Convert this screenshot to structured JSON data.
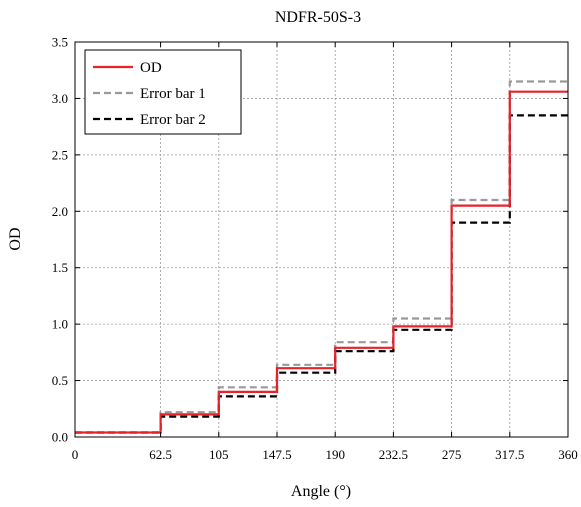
{
  "chart_data": {
    "type": "line",
    "title": "NDFR-50S-3",
    "xlabel": "Angle (°)",
    "ylabel": "OD",
    "xlim": [
      0,
      360
    ],
    "ylim": [
      0,
      3.5
    ],
    "x_ticks": [
      0,
      62.5,
      105,
      147.5,
      190,
      232.5,
      275,
      317.5,
      360
    ],
    "y_ticks": [
      0.0,
      0.5,
      1.0,
      1.5,
      2.0,
      2.5,
      3.0,
      3.5
    ],
    "x_tick_labels": [
      "0",
      "62.5",
      "105",
      "147.5",
      "190",
      "232.5",
      "275",
      "317.5",
      "360"
    ],
    "y_tick_labels": [
      "0.0",
      "0.5",
      "1.0",
      "1.5",
      "2.0",
      "2.5",
      "3.0",
      "3.5"
    ],
    "grid": true,
    "legend_position": "top-left",
    "series": [
      {
        "name": "OD",
        "color": "#e8212b",
        "style": "solid",
        "x": [
          0,
          62.5,
          62.5,
          105,
          105,
          147.5,
          147.5,
          190,
          190,
          232.5,
          232.5,
          275,
          275,
          317.5,
          317.5,
          360
        ],
        "y": [
          0.04,
          0.04,
          0.2,
          0.2,
          0.4,
          0.4,
          0.61,
          0.61,
          0.79,
          0.79,
          0.98,
          0.98,
          2.05,
          2.05,
          3.06,
          3.06
        ]
      },
      {
        "name": "Error bar 1",
        "color": "#999999",
        "style": "dashed",
        "x": [
          0,
          62.5,
          62.5,
          105,
          105,
          147.5,
          147.5,
          190,
          190,
          232.5,
          232.5,
          275,
          275,
          317.5,
          317.5,
          360
        ],
        "y": [
          0.04,
          0.04,
          0.22,
          0.22,
          0.44,
          0.44,
          0.64,
          0.64,
          0.84,
          0.84,
          1.05,
          1.05,
          2.1,
          2.1,
          3.15,
          3.15
        ]
      },
      {
        "name": "Error bar 2",
        "color": "#000000",
        "style": "dashed",
        "x": [
          0,
          62.5,
          62.5,
          105,
          105,
          147.5,
          147.5,
          190,
          190,
          232.5,
          232.5,
          275,
          275,
          317.5,
          317.5,
          360
        ],
        "y": [
          0.04,
          0.04,
          0.18,
          0.18,
          0.36,
          0.36,
          0.57,
          0.57,
          0.76,
          0.76,
          0.95,
          0.95,
          1.9,
          1.9,
          2.85,
          2.85
        ]
      }
    ]
  }
}
